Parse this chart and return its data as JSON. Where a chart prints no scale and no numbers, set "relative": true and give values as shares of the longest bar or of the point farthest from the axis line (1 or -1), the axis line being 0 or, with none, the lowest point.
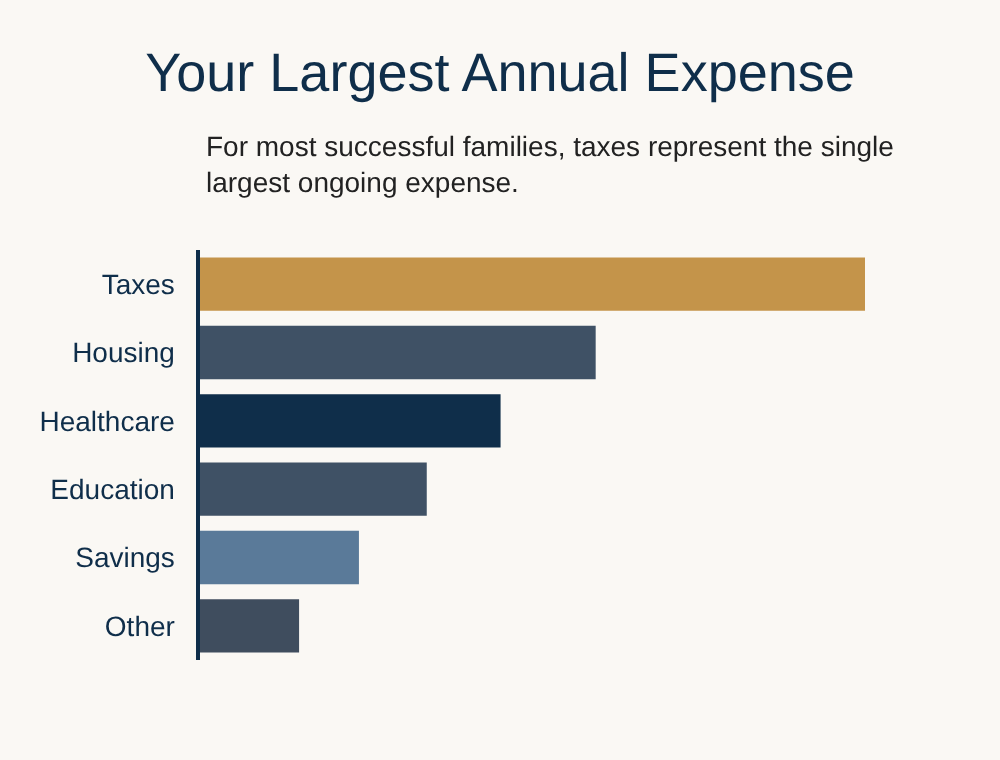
{
  "chart_data": {
    "type": "bar",
    "orientation": "horizontal",
    "relative": true,
    "title": "Your Largest Annual Expense",
    "subtitle": "For most successful families, taxes represent the single largest ongoing expense.",
    "categories": [
      "Taxes",
      "Housing",
      "Healthcare",
      "Education",
      "Savings",
      "Other"
    ],
    "values": [
      1,
      0.595,
      0.452,
      0.341,
      0.239,
      0.149
    ],
    "colors": [
      "#c4944a",
      "#3f5165",
      "#0f2e4a",
      "#3f5165",
      "#5a7a99",
      "#3f4d5e"
    ]
  }
}
